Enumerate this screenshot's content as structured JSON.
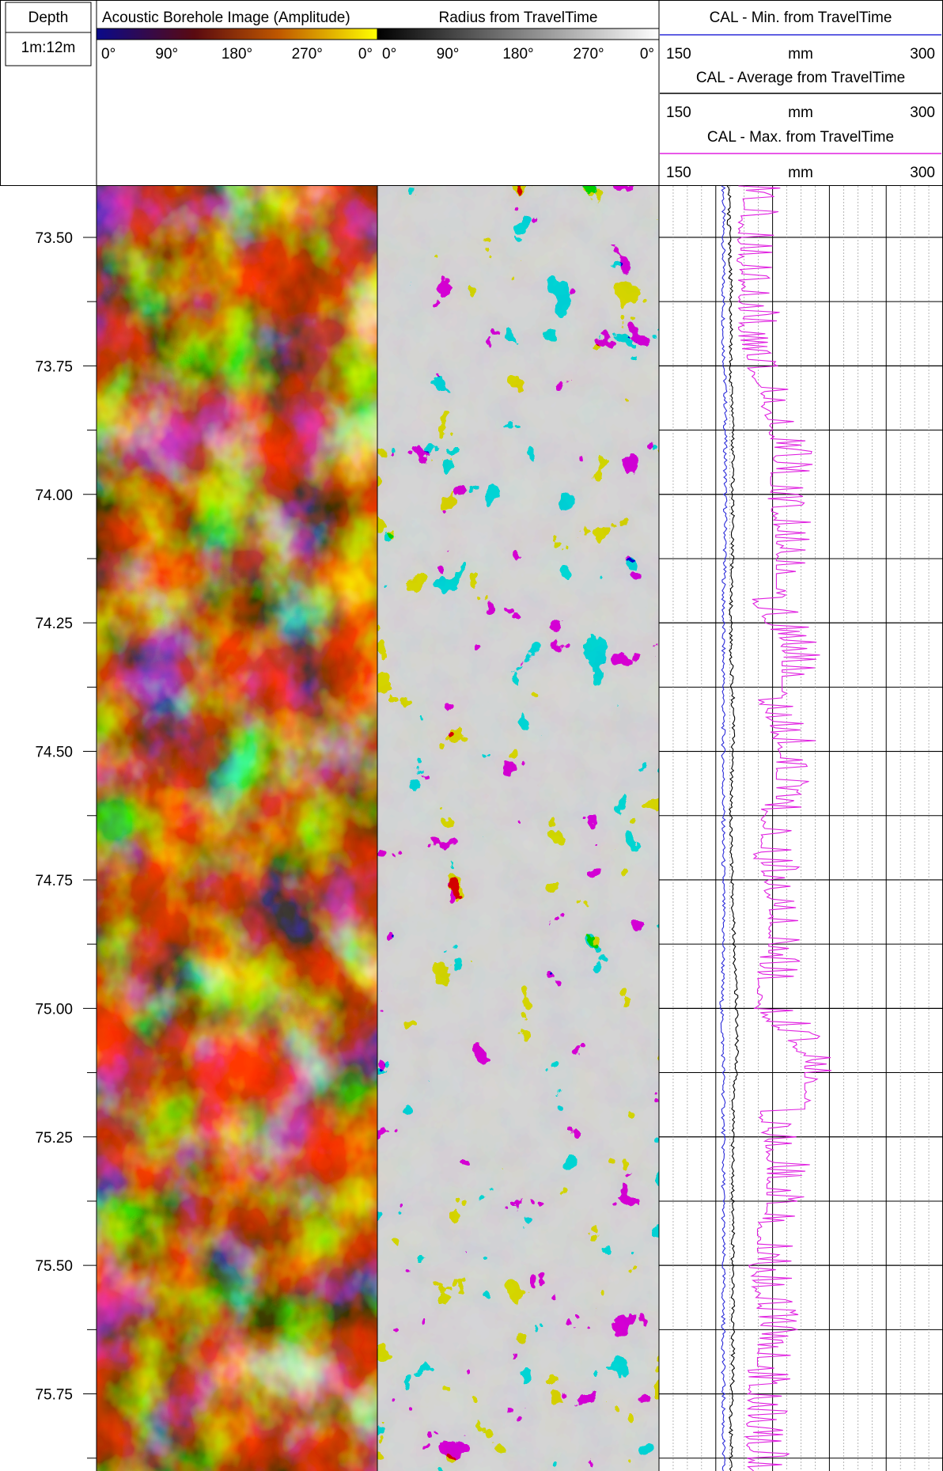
{
  "header": {
    "depth_label": "Depth",
    "scale_label": "1m:12m",
    "acoustic_title": "Acoustic Borehole Image (Amplitude)",
    "radius_title": "Radius from TravelTime",
    "azimuth_ticks": [
      "0°",
      "90°",
      "180°",
      "270°",
      "0°"
    ],
    "cal_curves": [
      {
        "title": "CAL - Min. from TravelTime",
        "min": "150",
        "unit": "mm",
        "max": "300",
        "color": "#2b2bd9"
      },
      {
        "title": "CAL - Average from TravelTime",
        "min": "150",
        "unit": "mm",
        "max": "300",
        "color": "#000000"
      },
      {
        "title": "CAL - Max. from TravelTime",
        "min": "150",
        "unit": "mm",
        "max": "300",
        "color": "#e020e0"
      }
    ]
  },
  "palettes": {
    "amplitude": [
      "#0a0a8a",
      "#6a0d0d",
      "#b04a00",
      "#e8b400",
      "#ffff00"
    ],
    "radius": [
      "#000000",
      "#ffffff"
    ]
  },
  "chart_data": {
    "type": "line",
    "y_axis": {
      "label": "Depth",
      "unit": "m",
      "range": [
        73.4,
        75.9
      ],
      "reversed": true,
      "ticks": [
        "73.50",
        "73.75",
        "74.00",
        "74.25",
        "74.50",
        "74.75",
        "75.00",
        "75.25",
        "75.50",
        "75.75"
      ]
    },
    "x_axis": {
      "unit": "mm",
      "range": [
        150,
        300
      ]
    },
    "depth": [
      73.4,
      73.5,
      73.6,
      73.7,
      73.8,
      73.9,
      74.0,
      74.1,
      74.2,
      74.3,
      74.4,
      74.5,
      74.6,
      74.7,
      74.8,
      74.9,
      75.0,
      75.1,
      75.2,
      75.3,
      75.4,
      75.5,
      75.6,
      75.7,
      75.8,
      75.9
    ],
    "series": [
      {
        "name": "CAL - Min. from TravelTime",
        "color": "#2b2bd9",
        "values": [
          184,
          184,
          184,
          184,
          185,
          185,
          185,
          185,
          184,
          184,
          184,
          184,
          184,
          184,
          184,
          184,
          183,
          184,
          184,
          184,
          184,
          184,
          184,
          184,
          184,
          184
        ]
      },
      {
        "name": "CAL - Average from TravelTime",
        "color": "#000000",
        "values": [
          187,
          187,
          188,
          188,
          188,
          189,
          189,
          189,
          188,
          188,
          189,
          189,
          188,
          188,
          189,
          190,
          191,
          191,
          189,
          189,
          189,
          189,
          189,
          189,
          188,
          188
        ]
      },
      {
        "name": "CAL - Max. from TravelTime",
        "color": "#e020e0",
        "values": [
          195,
          193,
          195,
          193,
          205,
          212,
          210,
          215,
          200,
          218,
          205,
          215,
          207,
          202,
          211,
          205,
          203,
          230,
          205,
          210,
          205,
          200,
          205,
          200,
          198,
          200
        ]
      }
    ]
  }
}
